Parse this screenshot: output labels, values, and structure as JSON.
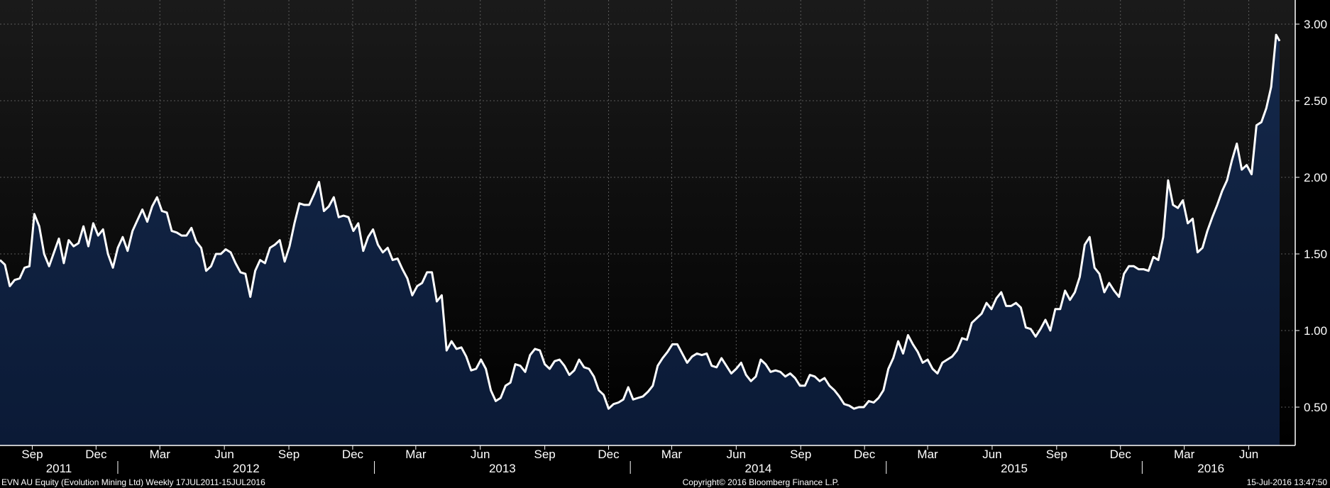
{
  "colors": {
    "background_top": "#1a1a1a",
    "background_bottom": "#000000",
    "area_top": "#14284a",
    "area_bottom": "#0b1a36",
    "line": "#ffffff",
    "grid": "#5a5a5a",
    "text": "#ffffff"
  },
  "footer": {
    "left": "EVN AU Equity (Evolution Mining Ltd)  Weekly 17JUL2011-15JUL2016",
    "center": "Copyright© 2016 Bloomberg Finance L.P.",
    "right": "15-Jul-2016 13:47:50"
  },
  "chart_data": {
    "type": "area",
    "title": "",
    "xlabel": "",
    "ylabel": "",
    "ylim": [
      0.25,
      3.0
    ],
    "y_ticks": [
      "0.50",
      "1.00",
      "1.50",
      "2.00",
      "2.50",
      "3.00"
    ],
    "y_axis_position": "right",
    "grid": true,
    "x_range": [
      "2011-07-17",
      "2016-07-15"
    ],
    "x_month_ticks": [
      {
        "date": "2011-09-01",
        "label": "Sep"
      },
      {
        "date": "2011-12-01",
        "label": "Dec"
      },
      {
        "date": "2012-03-01",
        "label": "Mar"
      },
      {
        "date": "2012-06-01",
        "label": "Jun"
      },
      {
        "date": "2012-09-01",
        "label": "Sep"
      },
      {
        "date": "2012-12-01",
        "label": "Dec"
      },
      {
        "date": "2013-03-01",
        "label": "Mar"
      },
      {
        "date": "2013-06-01",
        "label": "Jun"
      },
      {
        "date": "2013-09-01",
        "label": "Sep"
      },
      {
        "date": "2013-12-01",
        "label": "Dec"
      },
      {
        "date": "2014-03-01",
        "label": "Mar"
      },
      {
        "date": "2014-06-01",
        "label": "Jun"
      },
      {
        "date": "2014-09-01",
        "label": "Sep"
      },
      {
        "date": "2014-12-01",
        "label": "Dec"
      },
      {
        "date": "2015-03-01",
        "label": "Mar"
      },
      {
        "date": "2015-06-01",
        "label": "Jun"
      },
      {
        "date": "2015-09-01",
        "label": "Sep"
      },
      {
        "date": "2015-12-01",
        "label": "Dec"
      },
      {
        "date": "2016-03-01",
        "label": "Mar"
      },
      {
        "date": "2016-06-01",
        "label": "Jun"
      }
    ],
    "x_year_labels": [
      {
        "start": "2011-07-17",
        "end": "2012-01-01",
        "label": "2011"
      },
      {
        "start": "2012-01-01",
        "end": "2013-01-01",
        "label": "2012"
      },
      {
        "start": "2013-01-01",
        "end": "2014-01-01",
        "label": "2013"
      },
      {
        "start": "2014-01-01",
        "end": "2015-01-01",
        "label": "2014"
      },
      {
        "start": "2015-01-01",
        "end": "2016-01-01",
        "label": "2015"
      },
      {
        "start": "2016-01-01",
        "end": "2016-07-15",
        "label": "2016"
      }
    ],
    "series": [
      {
        "x": [
          "2011-07-17",
          "2011-07-24",
          "2011-07-31",
          "2011-08-07",
          "2011-08-14",
          "2011-08-21",
          "2011-08-28",
          "2011-09-04",
          "2011-09-11",
          "2011-09-18",
          "2011-09-25",
          "2011-10-02",
          "2011-10-09",
          "2011-10-16",
          "2011-10-23",
          "2011-10-30",
          "2011-11-06",
          "2011-11-13",
          "2011-11-20",
          "2011-11-27",
          "2011-12-04",
          "2011-12-11",
          "2011-12-18",
          "2011-12-25",
          "2012-01-01",
          "2012-01-08",
          "2012-01-15",
          "2012-01-22",
          "2012-01-29",
          "2012-02-05",
          "2012-02-12",
          "2012-02-19",
          "2012-02-26",
          "2012-03-04",
          "2012-03-11",
          "2012-03-18",
          "2012-03-25",
          "2012-04-01",
          "2012-04-08",
          "2012-04-15",
          "2012-04-22",
          "2012-04-29",
          "2012-05-06",
          "2012-05-13",
          "2012-05-20",
          "2012-05-27",
          "2012-06-03",
          "2012-06-10",
          "2012-06-17",
          "2012-06-24",
          "2012-07-01",
          "2012-07-08",
          "2012-07-15",
          "2012-07-22",
          "2012-07-29",
          "2012-08-05",
          "2012-08-12",
          "2012-08-19",
          "2012-08-26",
          "2012-09-02",
          "2012-09-09",
          "2012-09-16",
          "2012-09-23",
          "2012-09-30",
          "2012-10-07",
          "2012-10-14",
          "2012-10-21",
          "2012-10-28",
          "2012-11-04",
          "2012-11-11",
          "2012-11-18",
          "2012-11-25",
          "2012-12-02",
          "2012-12-09",
          "2012-12-16",
          "2012-12-23",
          "2012-12-30",
          "2013-01-06",
          "2013-01-13",
          "2013-01-20",
          "2013-01-27",
          "2013-02-03",
          "2013-02-10",
          "2013-02-17",
          "2013-02-24",
          "2013-03-03",
          "2013-03-10",
          "2013-03-17",
          "2013-03-24",
          "2013-03-31",
          "2013-04-07",
          "2013-04-14",
          "2013-04-21",
          "2013-04-28",
          "2013-05-05",
          "2013-05-12",
          "2013-05-19",
          "2013-05-26",
          "2013-06-02",
          "2013-06-09",
          "2013-06-16",
          "2013-06-23",
          "2013-06-30",
          "2013-07-07",
          "2013-07-14",
          "2013-07-21",
          "2013-07-28",
          "2013-08-04",
          "2013-08-11",
          "2013-08-18",
          "2013-08-25",
          "2013-09-01",
          "2013-09-08",
          "2013-09-15",
          "2013-09-22",
          "2013-09-29",
          "2013-10-06",
          "2013-10-13",
          "2013-10-20",
          "2013-10-27",
          "2013-11-03",
          "2013-11-10",
          "2013-11-17",
          "2013-11-24",
          "2013-12-01",
          "2013-12-08",
          "2013-12-15",
          "2013-12-22",
          "2013-12-29",
          "2014-01-05",
          "2014-01-12",
          "2014-01-19",
          "2014-01-26",
          "2014-02-02",
          "2014-02-09",
          "2014-02-16",
          "2014-02-23",
          "2014-03-02",
          "2014-03-09",
          "2014-03-16",
          "2014-03-23",
          "2014-03-30",
          "2014-04-06",
          "2014-04-13",
          "2014-04-20",
          "2014-04-27",
          "2014-05-04",
          "2014-05-11",
          "2014-05-18",
          "2014-05-25",
          "2014-06-01",
          "2014-06-08",
          "2014-06-15",
          "2014-06-22",
          "2014-06-29",
          "2014-07-06",
          "2014-07-13",
          "2014-07-20",
          "2014-07-27",
          "2014-08-03",
          "2014-08-10",
          "2014-08-17",
          "2014-08-24",
          "2014-08-31",
          "2014-09-07",
          "2014-09-14",
          "2014-09-21",
          "2014-09-28",
          "2014-10-05",
          "2014-10-12",
          "2014-10-19",
          "2014-10-26",
          "2014-11-02",
          "2014-11-09",
          "2014-11-16",
          "2014-11-23",
          "2014-11-30",
          "2014-12-07",
          "2014-12-14",
          "2014-12-21",
          "2014-12-28",
          "2015-01-04",
          "2015-01-11",
          "2015-01-18",
          "2015-01-25",
          "2015-02-01",
          "2015-02-08",
          "2015-02-15",
          "2015-02-22",
          "2015-03-01",
          "2015-03-08",
          "2015-03-15",
          "2015-03-22",
          "2015-03-29",
          "2015-04-05",
          "2015-04-12",
          "2015-04-19",
          "2015-04-26",
          "2015-05-03",
          "2015-05-10",
          "2015-05-17",
          "2015-05-24",
          "2015-05-31",
          "2015-06-07",
          "2015-06-14",
          "2015-06-21",
          "2015-06-28",
          "2015-07-05",
          "2015-07-12",
          "2015-07-19",
          "2015-07-26",
          "2015-08-02",
          "2015-08-09",
          "2015-08-16",
          "2015-08-23",
          "2015-08-30",
          "2015-09-06",
          "2015-09-13",
          "2015-09-20",
          "2015-09-27",
          "2015-10-04",
          "2015-10-11",
          "2015-10-18",
          "2015-10-25",
          "2015-11-01",
          "2015-11-08",
          "2015-11-15",
          "2015-11-22",
          "2015-11-29",
          "2015-12-06",
          "2015-12-13",
          "2015-12-20",
          "2015-12-27",
          "2016-01-03",
          "2016-01-10",
          "2016-01-17",
          "2016-01-24",
          "2016-01-31",
          "2016-02-07",
          "2016-02-14",
          "2016-02-21",
          "2016-02-28",
          "2016-03-06",
          "2016-03-13",
          "2016-03-20",
          "2016-03-27",
          "2016-04-03",
          "2016-04-10",
          "2016-04-17",
          "2016-04-24",
          "2016-05-01",
          "2016-05-08",
          "2016-05-15",
          "2016-05-22",
          "2016-05-29",
          "2016-06-05",
          "2016-06-12",
          "2016-06-19",
          "2016-06-26",
          "2016-07-03",
          "2016-07-10",
          "2016-07-15"
        ],
        "values": [
          1.46,
          1.43,
          1.29,
          1.33,
          1.34,
          1.41,
          1.42,
          1.76,
          1.68,
          1.5,
          1.42,
          1.51,
          1.6,
          1.44,
          1.59,
          1.55,
          1.57,
          1.68,
          1.55,
          1.7,
          1.62,
          1.66,
          1.5,
          1.41,
          1.54,
          1.61,
          1.52,
          1.65,
          1.72,
          1.79,
          1.71,
          1.81,
          1.87,
          1.78,
          1.77,
          1.65,
          1.64,
          1.62,
          1.62,
          1.67,
          1.58,
          1.54,
          1.39,
          1.42,
          1.5,
          1.5,
          1.53,
          1.51,
          1.44,
          1.38,
          1.37,
          1.22,
          1.39,
          1.46,
          1.44,
          1.54,
          1.56,
          1.59,
          1.45,
          1.55,
          1.7,
          1.83,
          1.82,
          1.82,
          1.89,
          1.97,
          1.78,
          1.81,
          1.87,
          1.74,
          1.75,
          1.74,
          1.65,
          1.7,
          1.52,
          1.61,
          1.66,
          1.56,
          1.51,
          1.54,
          1.46,
          1.47,
          1.4,
          1.34,
          1.23,
          1.29,
          1.31,
          1.38,
          1.38,
          1.19,
          1.23,
          0.87,
          0.93,
          0.88,
          0.89,
          0.83,
          0.74,
          0.75,
          0.81,
          0.75,
          0.61,
          0.54,
          0.56,
          0.64,
          0.66,
          0.78,
          0.77,
          0.73,
          0.84,
          0.88,
          0.87,
          0.78,
          0.75,
          0.8,
          0.81,
          0.77,
          0.71,
          0.74,
          0.81,
          0.76,
          0.75,
          0.7,
          0.61,
          0.58,
          0.49,
          0.52,
          0.53,
          0.55,
          0.63,
          0.55,
          0.56,
          0.57,
          0.6,
          0.64,
          0.77,
          0.82,
          0.86,
          0.91,
          0.91,
          0.85,
          0.79,
          0.83,
          0.85,
          0.84,
          0.85,
          0.77,
          0.76,
          0.82,
          0.77,
          0.72,
          0.75,
          0.79,
          0.71,
          0.67,
          0.7,
          0.81,
          0.78,
          0.73,
          0.74,
          0.73,
          0.7,
          0.72,
          0.69,
          0.64,
          0.64,
          0.71,
          0.7,
          0.67,
          0.69,
          0.64,
          0.61,
          0.57,
          0.52,
          0.51,
          0.49,
          0.5,
          0.5,
          0.54,
          0.53,
          0.56,
          0.61,
          0.75,
          0.82,
          0.93,
          0.85,
          0.97,
          0.91,
          0.86,
          0.79,
          0.81,
          0.75,
          0.72,
          0.79,
          0.81,
          0.83,
          0.87,
          0.95,
          0.94,
          1.05,
          1.08,
          1.11,
          1.18,
          1.14,
          1.21,
          1.25,
          1.16,
          1.16,
          1.18,
          1.15,
          1.02,
          1.01,
          0.96,
          1.01,
          1.07,
          1.0,
          1.14,
          1.14,
          1.26,
          1.2,
          1.25,
          1.35,
          1.56,
          1.61,
          1.41,
          1.37,
          1.25,
          1.31,
          1.26,
          1.22,
          1.37,
          1.42,
          1.42,
          1.4,
          1.4,
          1.39,
          1.48,
          1.46,
          1.61,
          1.98,
          1.82,
          1.8,
          1.85,
          1.7,
          1.73,
          1.51,
          1.54,
          1.65,
          1.74,
          1.82,
          1.91,
          1.98,
          2.11,
          2.22,
          2.05,
          2.08,
          2.02,
          2.34,
          2.36,
          2.45,
          2.59,
          2.93,
          2.89
        ]
      }
    ]
  }
}
